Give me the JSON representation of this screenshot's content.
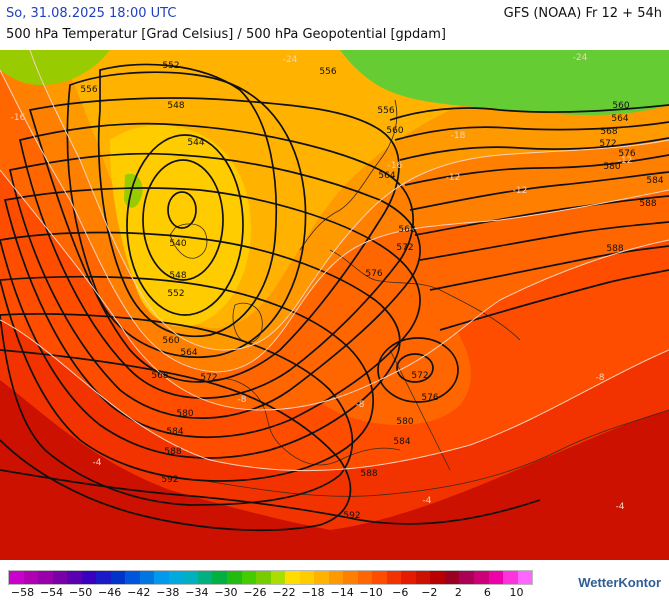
{
  "header": {
    "datetime": "So, 31.08.2025 18:00 UTC",
    "model_run": "GFS (NOAA) Fr 12 + 54h",
    "subtitle": "500 hPa Temperatur [Grad Celsius] / 500 hPa Geopotential [gpdam]"
  },
  "map": {
    "geopotential_labels": [
      "552",
      "556",
      "548",
      "544",
      "540",
      "548",
      "552",
      "560",
      "564",
      "568",
      "572",
      "580",
      "584",
      "588",
      "592",
      "592",
      "588",
      "584",
      "580",
      "576",
      "572",
      "576",
      "572",
      "568",
      "564",
      "560",
      "556",
      "556",
      "560",
      "564",
      "568",
      "572",
      "576",
      "580",
      "584",
      "588",
      "588"
    ],
    "temperature_labels": [
      "-24",
      "-24",
      "-18",
      "-16",
      "-12",
      "-12",
      "-12",
      "-8",
      "-8",
      "-8",
      "-4",
      "-4",
      "-4",
      "-16"
    ],
    "colors": {
      "temp_minus_24": "#66cc33",
      "temp_minus_22": "#99cc00",
      "temp_minus_20": "#ffcc00",
      "temp_minus_16": "#ffb300",
      "temp_minus_14": "#ff9900",
      "temp_minus_12": "#ff8000",
      "temp_minus_10": "#ff6600",
      "temp_minus_8": "#ff4d00",
      "temp_minus_6": "#f23300",
      "temp_minus_4": "#e61a00",
      "temp_minus_2": "#cc1100",
      "contour_color": "#111111",
      "isotherm_color": "#f5d2c0"
    }
  },
  "legend": {
    "swatches": [
      "#cc00cc",
      "#b000b0",
      "#9900aa",
      "#7a00a8",
      "#5a00b0",
      "#3a00c0",
      "#1a1ac8",
      "#0033cc",
      "#0055dd",
      "#0077e0",
      "#0099ee",
      "#00aadd",
      "#00b0c0",
      "#00b080",
      "#00b040",
      "#22bb11",
      "#44cc00",
      "#77cc00",
      "#aadd00",
      "#ffdd00",
      "#ffcc00",
      "#ffb300",
      "#ff9900",
      "#ff8000",
      "#ff6600",
      "#ff4d00",
      "#f23300",
      "#e61a00",
      "#cc1100",
      "#b80000",
      "#990022",
      "#aa0055",
      "#cc0077",
      "#ee00aa",
      "#ff33dd",
      "#ff66ff"
    ],
    "labels": [
      "−58",
      "−54",
      "−50",
      "−46",
      "−42",
      "−38",
      "−34",
      "−30",
      "−26",
      "−22",
      "−18",
      "−14",
      "−10",
      "−6",
      "−2",
      "2",
      "6",
      "10"
    ],
    "brand": "WetterKontor"
  }
}
